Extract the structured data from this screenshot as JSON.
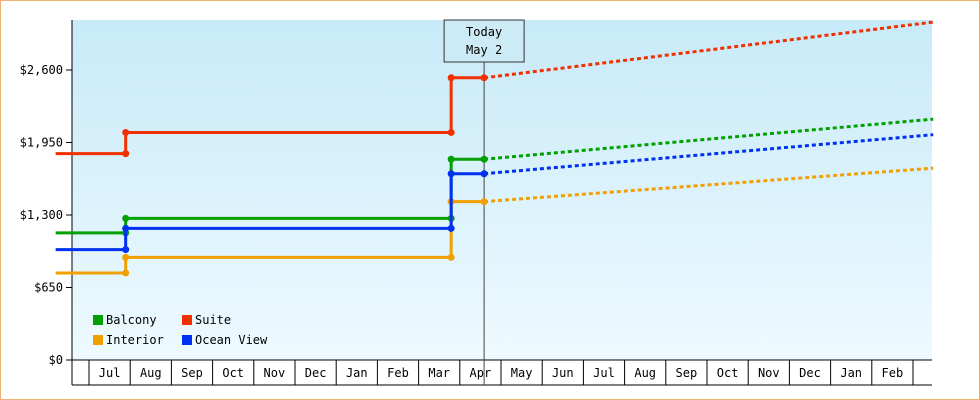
{
  "chart_data": {
    "type": "line",
    "y_ticks": [
      "$0",
      "$650",
      "$1,300",
      "$1,950",
      "$2,600"
    ],
    "ylim": [
      0,
      2600
    ],
    "months": [
      "Jul",
      "Aug",
      "Sep",
      "Oct",
      "Nov",
      "Dec",
      "Jan",
      "Feb",
      "Mar",
      "Apr",
      "May",
      "Jun",
      "Jul",
      "Aug",
      "Sep",
      "Oct",
      "Nov",
      "Dec",
      "Jan",
      "Feb"
    ],
    "today_label": "Today",
    "today_date": "May 2",
    "today_x": 10.1,
    "grid": false,
    "legend_position": "bottom-left",
    "series": [
      {
        "name": "Balcony",
        "color": "#00a000",
        "actual": [
          [
            -0.3,
            1140
          ],
          [
            1.4,
            1140
          ],
          [
            1.4,
            1270
          ],
          [
            9.3,
            1270
          ],
          [
            9.3,
            1800
          ],
          [
            10.1,
            1800
          ]
        ],
        "forecast": [
          [
            10.1,
            1800
          ],
          [
            21.0,
            2160
          ]
        ]
      },
      {
        "name": "Interior",
        "color": "#f0a000",
        "actual": [
          [
            -0.3,
            780
          ],
          [
            1.4,
            780
          ],
          [
            1.4,
            920
          ],
          [
            9.3,
            920
          ],
          [
            9.3,
            1420
          ],
          [
            10.1,
            1420
          ]
        ],
        "forecast": [
          [
            10.1,
            1420
          ],
          [
            21.0,
            1720
          ]
        ]
      },
      {
        "name": "Suite",
        "color": "#f03000",
        "actual": [
          [
            -0.3,
            1850
          ],
          [
            1.4,
            1850
          ],
          [
            1.4,
            2040
          ],
          [
            9.3,
            2040
          ],
          [
            9.3,
            2530
          ],
          [
            10.1,
            2530
          ]
        ],
        "forecast": [
          [
            10.1,
            2530
          ],
          [
            21.0,
            3030
          ]
        ]
      },
      {
        "name": "Ocean View",
        "color": "#0030f0",
        "actual": [
          [
            -0.3,
            990
          ],
          [
            1.4,
            990
          ],
          [
            1.4,
            1180
          ],
          [
            9.3,
            1180
          ],
          [
            9.3,
            1670
          ],
          [
            10.1,
            1670
          ]
        ],
        "forecast": [
          [
            10.1,
            1670
          ],
          [
            21.0,
            2020
          ]
        ]
      }
    ]
  }
}
